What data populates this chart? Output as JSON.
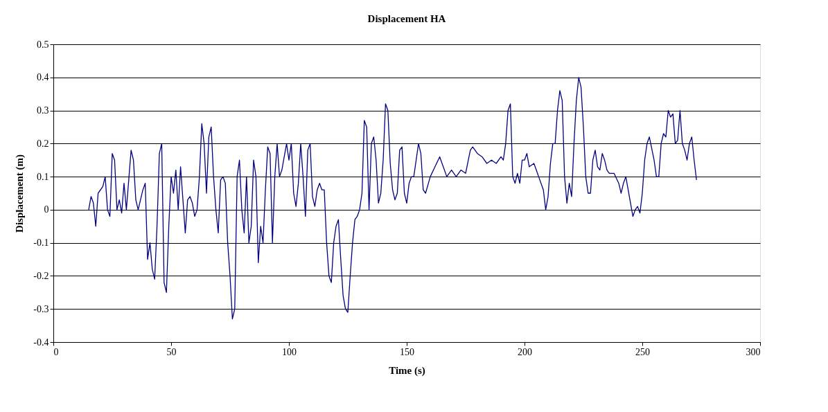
{
  "chart_data": {
    "type": "line",
    "title": "Displacement HA",
    "xlabel": "Time (s)",
    "ylabel": "Displacement (m)",
    "xlim": [
      0,
      300
    ],
    "xticks": [
      0,
      50,
      100,
      150,
      200,
      250,
      300
    ],
    "ylim": [
      -0.4,
      0.5
    ],
    "yticks": [
      -0.4,
      -0.3,
      -0.2,
      -0.1,
      0,
      0.1,
      0.2,
      0.3,
      0.4,
      0.5
    ],
    "grid": "y",
    "marker": "none",
    "line_style": "solid",
    "series": [
      {
        "color": "#000080",
        "x": [
          15,
          16,
          17,
          18,
          19,
          21,
          22,
          23,
          24,
          25,
          26,
          27,
          28,
          29,
          30,
          31,
          33,
          34,
          35,
          36,
          38,
          39,
          40,
          41,
          42,
          43,
          44,
          45,
          46,
          47,
          48,
          49,
          50,
          51,
          52,
          53,
          54,
          55,
          56,
          57,
          58,
          59,
          60,
          61,
          62,
          63,
          64,
          65,
          66,
          67,
          68,
          69,
          70,
          71,
          72,
          73,
          74,
          75,
          76,
          77,
          78,
          79,
          80,
          81,
          82,
          83,
          84,
          85,
          86,
          87,
          88,
          89,
          90,
          91,
          92,
          93,
          94,
          95,
          96,
          97,
          98,
          99,
          100,
          101,
          102,
          103,
          104,
          105,
          106,
          107,
          108,
          109,
          110,
          111,
          112,
          113,
          114,
          115,
          116,
          117,
          118,
          119,
          120,
          121,
          122,
          123,
          124,
          125,
          126,
          127,
          128,
          129,
          130,
          131,
          132,
          133,
          134,
          135,
          136,
          137,
          138,
          139,
          140,
          141,
          142,
          143,
          144,
          145,
          146,
          147,
          148,
          149,
          150,
          151,
          152,
          153,
          155,
          156,
          157,
          158,
          160,
          162,
          164,
          165,
          167,
          169,
          171,
          173,
          175,
          177,
          178,
          180,
          182,
          184,
          186,
          188,
          190,
          191,
          192,
          193,
          194,
          195,
          196,
          197,
          198,
          199,
          200,
          201,
          202,
          204,
          205,
          206,
          208,
          209,
          210,
          211,
          212,
          213,
          214,
          215,
          216,
          217,
          218,
          219,
          220,
          221,
          222,
          223,
          224,
          225,
          226,
          227,
          228,
          229,
          230,
          231,
          232,
          233,
          234,
          235,
          236,
          238,
          240,
          241,
          242,
          243,
          244,
          245,
          246,
          247,
          248,
          249,
          250,
          251,
          252,
          253,
          255,
          256,
          257,
          258,
          259,
          260,
          261,
          262,
          263,
          264,
          265,
          266,
          267,
          268,
          269,
          270,
          271,
          272,
          273
        ],
        "values": [
          0.0,
          0.04,
          0.02,
          -0.05,
          0.05,
          0.07,
          0.1,
          0.0,
          -0.02,
          0.17,
          0.15,
          0.0,
          0.03,
          -0.01,
          0.08,
          0.0,
          0.18,
          0.15,
          0.03,
          0.0,
          0.06,
          0.08,
          -0.15,
          -0.1,
          -0.18,
          -0.21,
          -0.05,
          0.17,
          0.2,
          -0.22,
          -0.25,
          -0.05,
          0.1,
          0.05,
          0.12,
          0.0,
          0.13,
          0.03,
          -0.07,
          0.03,
          0.04,
          0.02,
          -0.02,
          0.0,
          0.1,
          0.26,
          0.2,
          0.05,
          0.22,
          0.25,
          0.1,
          0.0,
          -0.07,
          0.09,
          0.1,
          0.08,
          -0.1,
          -0.2,
          -0.33,
          -0.3,
          0.1,
          0.15,
          0.0,
          -0.07,
          0.1,
          -0.1,
          -0.05,
          0.15,
          0.1,
          -0.16,
          -0.05,
          -0.1,
          0.06,
          0.19,
          0.17,
          -0.1,
          0.1,
          0.2,
          0.1,
          0.12,
          0.16,
          0.2,
          0.15,
          0.2,
          0.05,
          0.01,
          0.08,
          0.2,
          0.1,
          -0.02,
          0.18,
          0.2,
          0.04,
          0.01,
          0.06,
          0.08,
          0.06,
          0.06,
          -0.1,
          -0.2,
          -0.22,
          -0.1,
          -0.05,
          -0.03,
          -0.15,
          -0.26,
          -0.3,
          -0.31,
          -0.2,
          -0.1,
          -0.03,
          -0.02,
          0.0,
          0.05,
          0.27,
          0.25,
          0.0,
          0.2,
          0.22,
          0.15,
          0.02,
          0.05,
          0.15,
          0.32,
          0.3,
          0.14,
          0.06,
          0.03,
          0.05,
          0.18,
          0.19,
          0.05,
          0.02,
          0.08,
          0.1,
          0.1,
          0.2,
          0.17,
          0.06,
          0.05,
          0.1,
          0.13,
          0.16,
          0.14,
          0.1,
          0.12,
          0.1,
          0.12,
          0.11,
          0.18,
          0.19,
          0.17,
          0.16,
          0.14,
          0.15,
          0.14,
          0.16,
          0.15,
          0.2,
          0.3,
          0.32,
          0.1,
          0.08,
          0.11,
          0.08,
          0.15,
          0.15,
          0.17,
          0.13,
          0.14,
          0.12,
          0.1,
          0.06,
          0.0,
          0.04,
          0.14,
          0.2,
          0.2,
          0.3,
          0.36,
          0.33,
          0.1,
          0.02,
          0.08,
          0.04,
          0.2,
          0.33,
          0.4,
          0.37,
          0.25,
          0.1,
          0.05,
          0.05,
          0.15,
          0.18,
          0.13,
          0.12,
          0.17,
          0.15,
          0.12,
          0.11,
          0.11,
          0.08,
          0.05,
          0.08,
          0.1,
          0.06,
          0.02,
          -0.02,
          0.0,
          0.01,
          -0.01,
          0.05,
          0.15,
          0.2,
          0.22,
          0.15,
          0.1,
          0.1,
          0.2,
          0.23,
          0.22,
          0.3,
          0.28,
          0.29,
          0.2,
          0.21,
          0.3,
          0.2,
          0.18,
          0.15,
          0.2,
          0.22,
          0.15,
          0.09
        ]
      }
    ]
  }
}
